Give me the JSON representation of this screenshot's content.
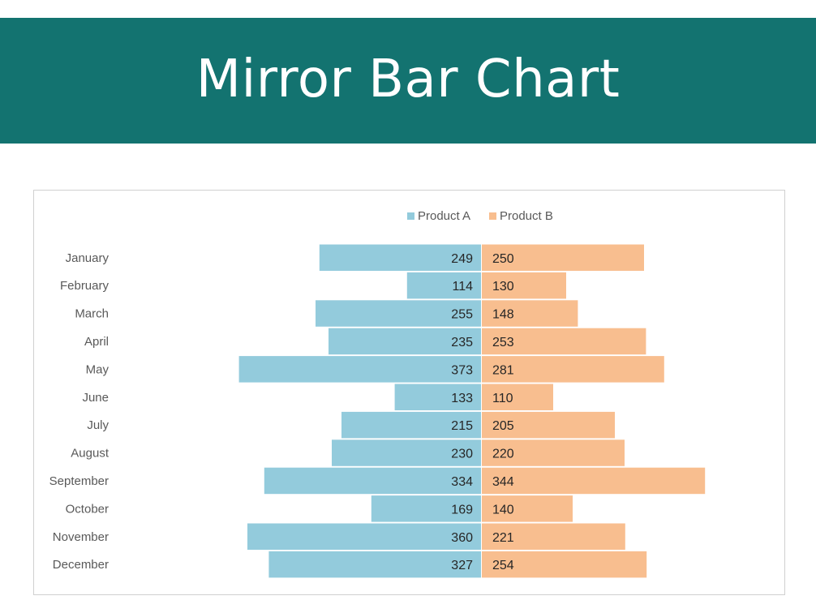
{
  "banner": {
    "title": "Mirror Bar Chart"
  },
  "colors": {
    "banner_bg": "#137370",
    "product_a": "#93cbdc",
    "product_b": "#f8be8f",
    "category_text": "#595959",
    "value_text": "#262626",
    "legend_text": "#595959"
  },
  "chart_data": {
    "type": "bar",
    "orientation": "horizontal-mirror",
    "title": "",
    "legend_position": "top",
    "categories": [
      "January",
      "February",
      "March",
      "April",
      "May",
      "June",
      "July",
      "August",
      "September",
      "October",
      "November",
      "December"
    ],
    "series": [
      {
        "name": "Product A",
        "direction": "left",
        "values": [
          249,
          114,
          255,
          235,
          373,
          133,
          215,
          230,
          334,
          169,
          360,
          327
        ]
      },
      {
        "name": "Product B",
        "direction": "right",
        "values": [
          250,
          130,
          148,
          253,
          281,
          110,
          205,
          220,
          344,
          140,
          221,
          254
        ]
      }
    ],
    "xlim": [
      0,
      400
    ],
    "grid": false,
    "data_labels": true
  }
}
